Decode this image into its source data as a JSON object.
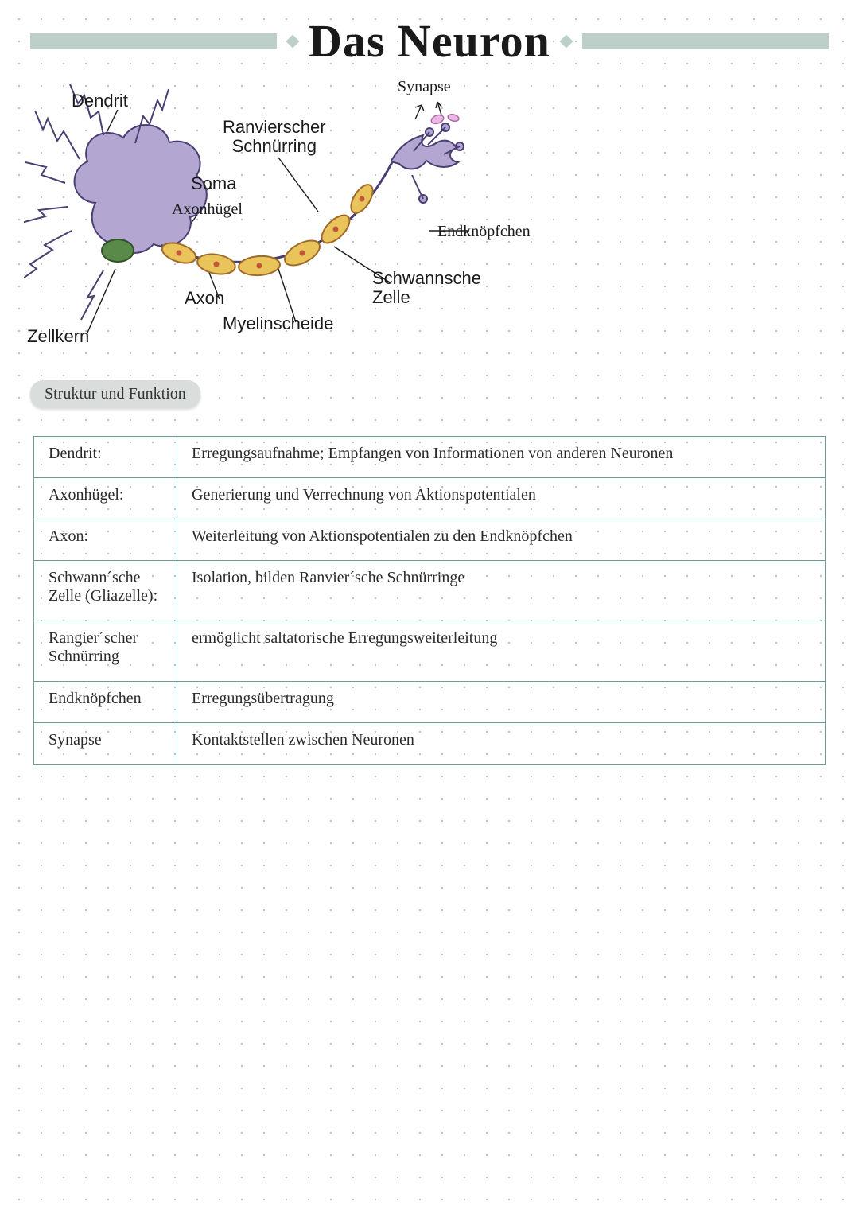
{
  "title": "Das Neuron",
  "colors": {
    "banner": "#bccfc9",
    "dot_grid": "#b8c4c4",
    "table_border": "#6f9a96",
    "soma_fill": "#b3a6d1",
    "soma_stroke": "#4a3f72",
    "nucleus_fill": "#5a8a4a",
    "nucleus_stroke": "#2f5226",
    "myelin_fill": "#e8c45a",
    "myelin_stroke": "#a06a2a",
    "myelin_dot": "#c2553a",
    "synapse_pink": "#e9b8e4",
    "label_text": "#1a1a1a",
    "pill_bg": "#d9dedc"
  },
  "diagram": {
    "labels": {
      "dendrit": "Dendrit",
      "synapse": "Synapse",
      "ranvier": "Ranvierscher\nSchnürring",
      "soma": "Soma",
      "axonhugel": "Axonhügel",
      "endknopfchen": "Endknöpfchen",
      "schwannsche": "Schwannsche\nZelle",
      "axon": "Axon",
      "myelinscheide": "Myelinscheide",
      "zellkern": "Zellkern"
    }
  },
  "section_heading": "Struktur und Funktion",
  "table": {
    "rows": [
      {
        "term": "Dendrit:",
        "desc": "Erregungsaufnahme; Empfangen von Informationen von anderen Neuronen",
        "tall": false
      },
      {
        "term": "Axonhügel:",
        "desc": "Generierung und Verrechnung von Aktionspotentialen",
        "tall": false
      },
      {
        "term": "Axon:",
        "desc": "Weiterleitung von Aktionspotentialen zu den Endknöpfchen",
        "tall": false
      },
      {
        "term": "Schwann´sche Zelle (Gliazelle):",
        "desc": "Isolation, bilden Ranvier´sche Schnürringe",
        "tall": true
      },
      {
        "term": "Rangier´scher Schnürring",
        "desc": "ermöglicht saltatorische Erregungsweiterleitung",
        "tall": true
      },
      {
        "term": "Endknöpfchen",
        "desc": "Erregungsübertragung",
        "tall": false
      },
      {
        "term": "Synapse",
        "desc": "Kontaktstellen zwischen Neuronen",
        "tall": false
      }
    ]
  }
}
